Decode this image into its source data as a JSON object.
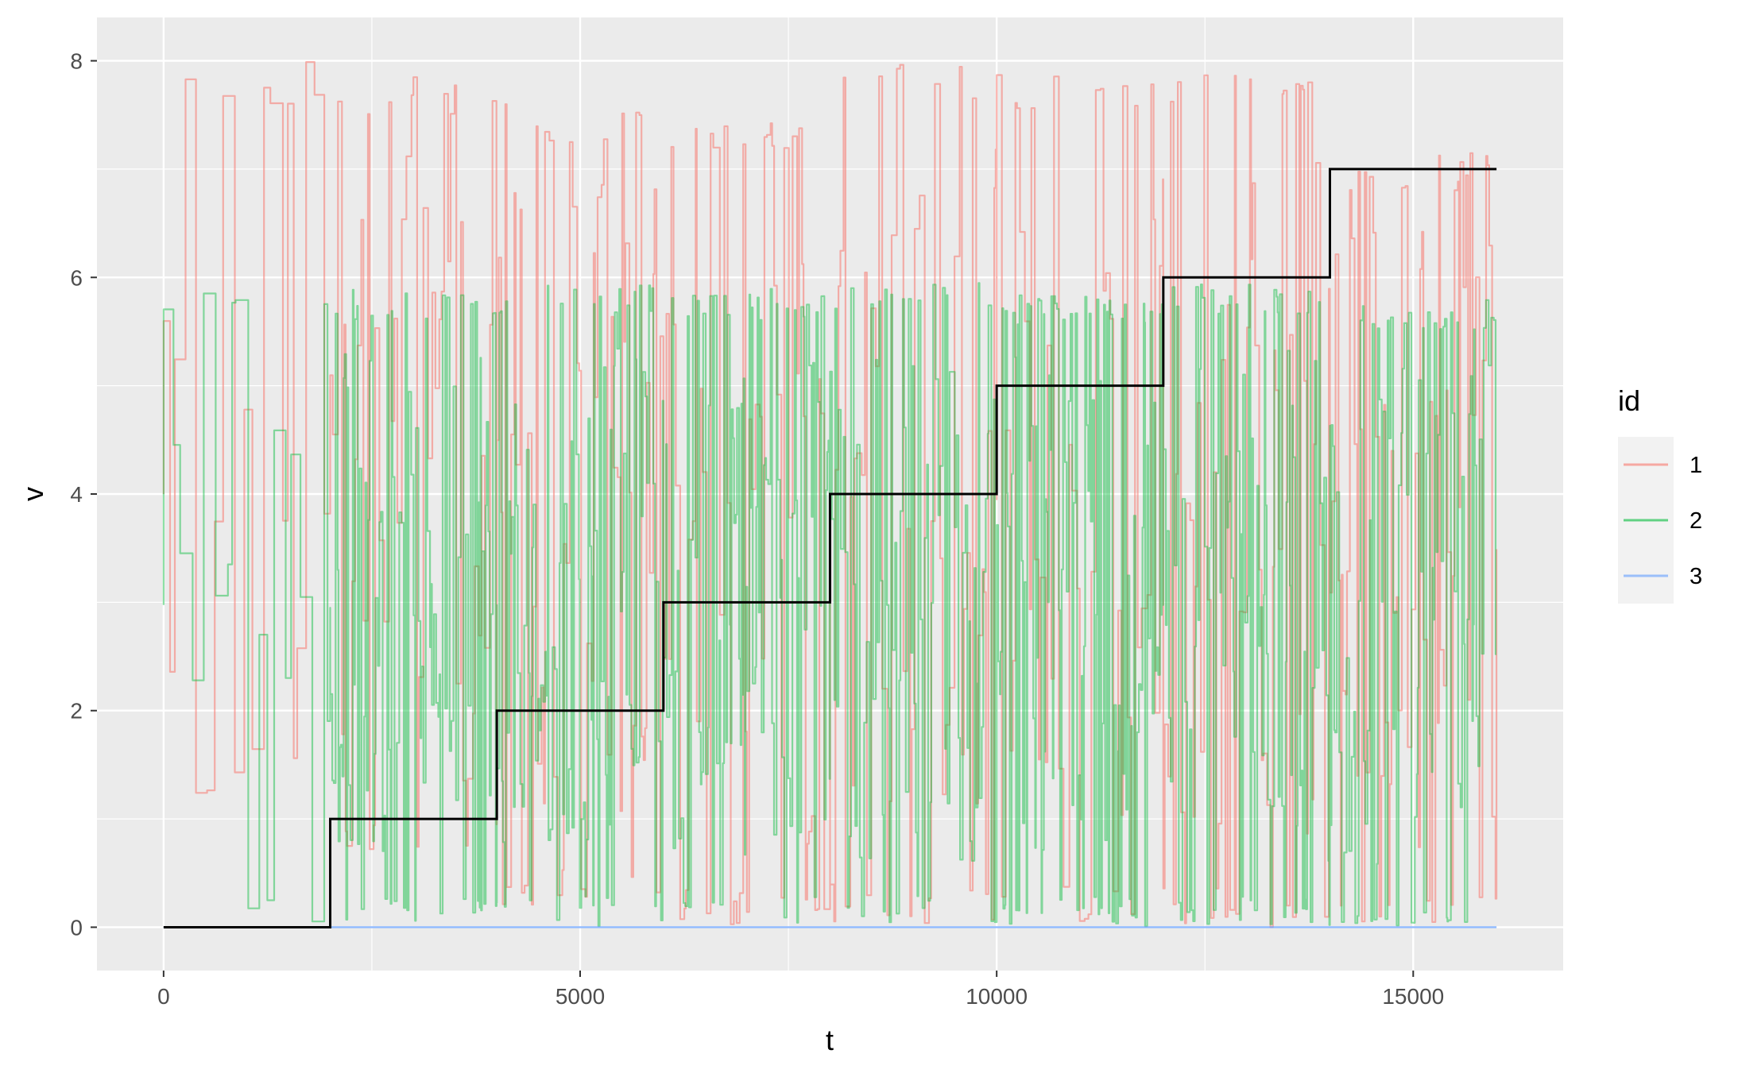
{
  "chart_data": {
    "type": "line",
    "title": "",
    "xlabel": "t",
    "ylabel": "v",
    "xlim": [
      -800,
      16800
    ],
    "ylim": [
      -0.4,
      8.4
    ],
    "x_ticks": [
      0,
      5000,
      10000,
      15000
    ],
    "x_tick_labels": [
      "0",
      "5000",
      "10000",
      "15000"
    ],
    "y_ticks": [
      0,
      2,
      4,
      6,
      8
    ],
    "y_tick_labels": [
      "0",
      "2",
      "4",
      "6",
      "8"
    ],
    "grid": true,
    "legend": {
      "title": "id",
      "placement": "right",
      "entries": [
        {
          "label": "1",
          "color": "#F8766D"
        },
        {
          "label": "2",
          "color": "#00BA38"
        },
        {
          "label": "3",
          "color": "#619CFF"
        }
      ]
    },
    "colors": {
      "panel_background": "#EBEBEB",
      "grid": "#FFFFFF",
      "step_line": "#000000",
      "legend_key_background": "#F2F2F2"
    },
    "series": [
      {
        "name": "1",
        "kind": "oscillating",
        "color": "#F8766D",
        "alpha": 0.55,
        "segments": [
          {
            "x": [
              0,
              2000
            ],
            "low": 0,
            "high": 8.0,
            "period": 95
          },
          {
            "x": [
              2000,
              4000
            ],
            "low": 0.6,
            "high": 7.85,
            "period": 40
          },
          {
            "x": [
              4000,
              6000
            ],
            "low": 0.2,
            "high": 7.6,
            "period": 35
          },
          {
            "x": [
              6000,
              8000
            ],
            "low": 0.0,
            "high": 7.55,
            "period": 35
          },
          {
            "x": [
              8000,
              10000
            ],
            "low": 0.0,
            "high": 8.0,
            "period": 40
          },
          {
            "x": [
              10000,
              12000
            ],
            "low": 0.0,
            "high": 7.9,
            "period": 45
          },
          {
            "x": [
              12000,
              14000
            ],
            "low": 0.0,
            "high": 8.0,
            "period": 35
          },
          {
            "x": [
              14000,
              16000
            ],
            "low": 0.0,
            "high": 7.15,
            "period": 30
          }
        ]
      },
      {
        "name": "2",
        "kind": "oscillating",
        "color": "#00BA38",
        "alpha": 0.45,
        "segments": [
          {
            "x": [
              0,
              2000
            ],
            "low": 0,
            "high": 5.95,
            "period": 95
          },
          {
            "x": [
              2000,
              4000
            ],
            "low": 0.0,
            "high": 5.9,
            "period": 20
          },
          {
            "x": [
              4000,
              6000
            ],
            "low": 0.0,
            "high": 5.95,
            "period": 20
          },
          {
            "x": [
              6000,
              8000
            ],
            "low": 0.0,
            "high": 5.9,
            "period": 20
          },
          {
            "x": [
              8000,
              10000
            ],
            "low": 0.0,
            "high": 5.95,
            "period": 22
          },
          {
            "x": [
              10000,
              12000
            ],
            "low": 0.0,
            "high": 5.85,
            "period": 16
          },
          {
            "x": [
              12000,
              14000
            ],
            "low": 0.0,
            "high": 5.95,
            "period": 20
          },
          {
            "x": [
              14000,
              16000
            ],
            "low": 0.0,
            "high": 5.8,
            "period": 20
          }
        ]
      },
      {
        "name": "3",
        "kind": "constant",
        "color": "#619CFF",
        "alpha": 0.7,
        "x": [
          0,
          16000
        ],
        "y": [
          0,
          0
        ]
      },
      {
        "name": "",
        "kind": "step",
        "color": "#000000",
        "x": [
          0,
          2000,
          4000,
          6000,
          8000,
          10000,
          12000,
          14000,
          16000
        ],
        "y": [
          0,
          1,
          2,
          3,
          4,
          5,
          6,
          7,
          7
        ]
      }
    ]
  }
}
